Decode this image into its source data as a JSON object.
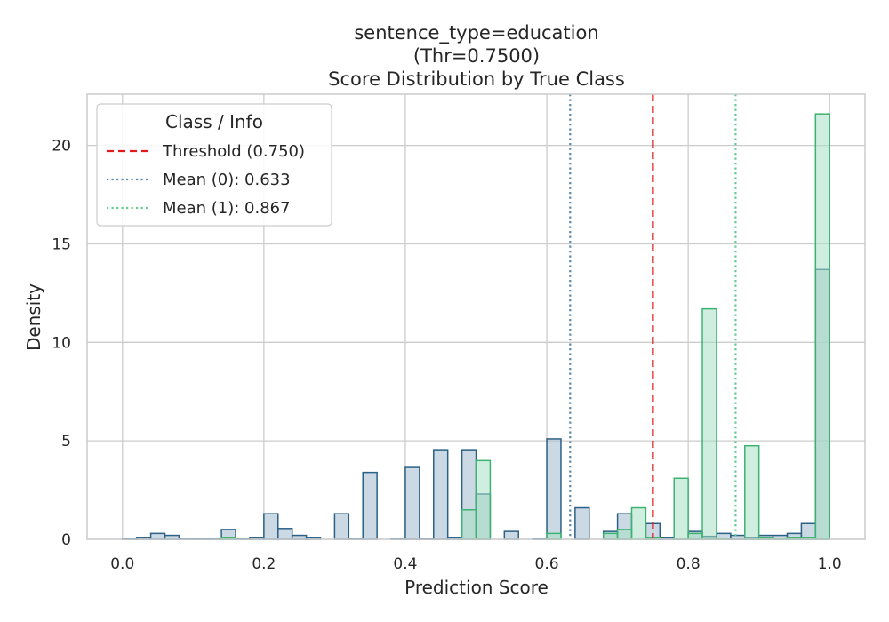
{
  "chart_data": {
    "type": "histogram",
    "title_lines": [
      "sentence_type=education",
      "(Thr=0.7500)",
      "Score Distribution by True Class"
    ],
    "xlabel": "Prediction Score",
    "ylabel": "Density",
    "xlim": [
      -0.05,
      1.05
    ],
    "ylim": [
      0,
      22.6
    ],
    "xticks": [
      0.0,
      0.2,
      0.4,
      0.6,
      0.8,
      1.0
    ],
    "xtick_labels": [
      "0.0",
      "0.2",
      "0.4",
      "0.6",
      "0.8",
      "1.0"
    ],
    "yticks": [
      0,
      5,
      10,
      15,
      20
    ],
    "ytick_labels": [
      "0",
      "5",
      "10",
      "15",
      "20"
    ],
    "grid": true,
    "bin_width": 0.02,
    "bin_start": 0.0,
    "series": [
      {
        "label": "0",
        "step_color": "#2b6186",
        "fill_color": "#a9bfd2",
        "densities": [
          0.05,
          0.1,
          0.3,
          0.2,
          0.05,
          0.05,
          0.05,
          0.5,
          0.05,
          0.1,
          1.3,
          0.55,
          0.2,
          0.1,
          0.0,
          1.3,
          0.05,
          3.4,
          0.0,
          0.05,
          3.65,
          0.05,
          4.55,
          0.1,
          4.55,
          2.3,
          0.0,
          0.4,
          0.0,
          0.05,
          5.1,
          0.0,
          1.6,
          0.0,
          0.4,
          1.3,
          0.0,
          0.8,
          0.1,
          0.05,
          0.4,
          0.15,
          0.3,
          0.2,
          0.1,
          0.2,
          0.2,
          0.3,
          0.8,
          13.7
        ]
      },
      {
        "label": "1",
        "step_color": "#3cb371",
        "fill_color": "#a8e0c4",
        "densities": [
          0.0,
          0.0,
          0.0,
          0.0,
          0.0,
          0.0,
          0.0,
          0.1,
          0.0,
          0.0,
          0.0,
          0.0,
          0.0,
          0.0,
          0.0,
          0.0,
          0.0,
          0.0,
          0.0,
          0.0,
          0.0,
          0.0,
          0.0,
          0.0,
          1.5,
          4.0,
          0.0,
          0.0,
          0.0,
          0.0,
          0.3,
          0.0,
          0.0,
          0.0,
          0.3,
          0.5,
          1.6,
          0.1,
          0.0,
          3.1,
          0.3,
          11.7,
          0.05,
          0.0,
          4.75,
          0.1,
          0.05,
          0.1,
          0.1,
          21.6
        ]
      }
    ],
    "vlines": [
      {
        "name": "Threshold (0.750)",
        "x": 0.75,
        "color": "#e31a1c",
        "style": "dashed"
      },
      {
        "name": "Mean (0): 0.633",
        "x": 0.633,
        "color": "#5b86a6",
        "style": "dotted"
      },
      {
        "name": "Mean (1): 0.867",
        "x": 0.867,
        "color": "#66c99a",
        "style": "dotted"
      }
    ],
    "legend": {
      "title": "Class / Info",
      "placement": "top-left",
      "entries": [
        "Threshold (0.750)",
        "Mean (0): 0.633",
        "Mean (1): 0.867"
      ]
    }
  }
}
